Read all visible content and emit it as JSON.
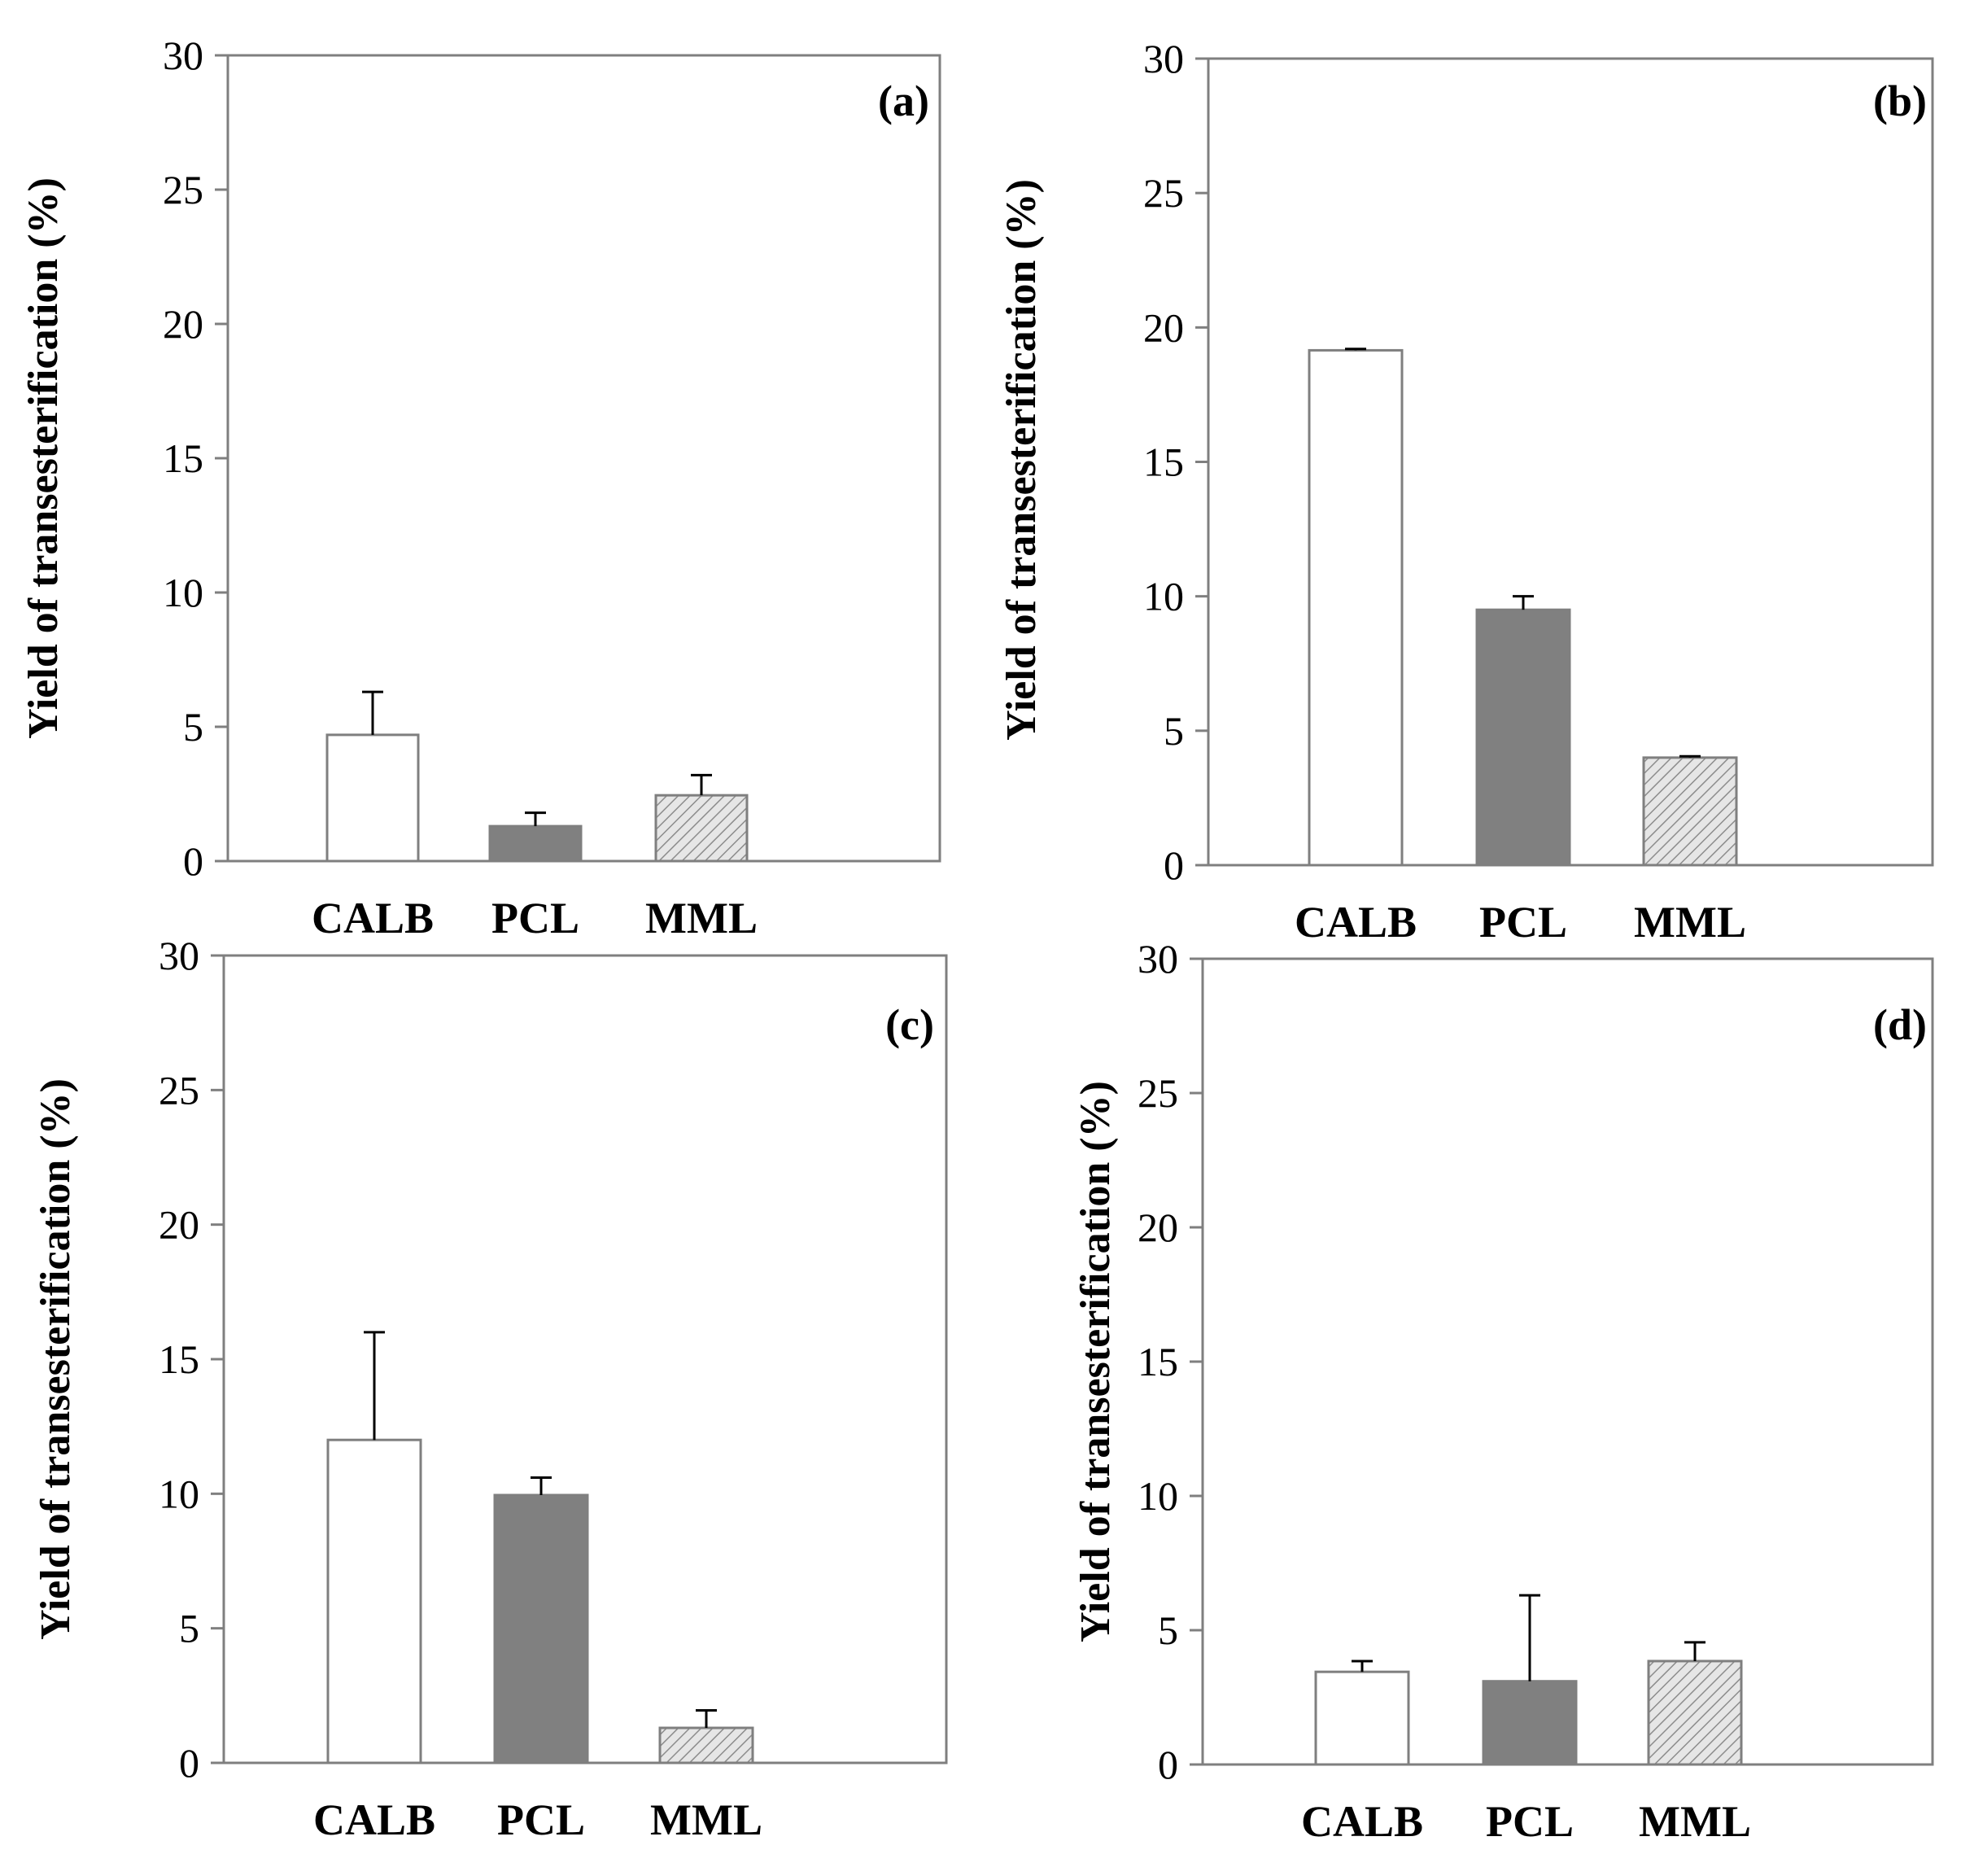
{
  "chart_data": [
    {
      "type": "bar",
      "panel_label": "(a)",
      "categories": [
        "CALB",
        "PCL",
        "MML"
      ],
      "values": [
        4.7,
        1.3,
        2.45
      ],
      "error_plus": [
        1.6,
        0.5,
        0.75
      ],
      "ylabel": "Yield of transesterification (%)",
      "ylim": [
        0,
        30
      ],
      "yticks": [
        "0",
        "5",
        "10",
        "15",
        "20",
        "25",
        "30"
      ],
      "legend": "none",
      "grid": false
    },
    {
      "type": "bar",
      "panel_label": "(b)",
      "categories": [
        "CALB",
        "PCL",
        "MML"
      ],
      "values": [
        19.15,
        9.5,
        4.0
      ],
      "error_plus": [
        0.05,
        0.5,
        0.05
      ],
      "ylabel": "Yield of transesterification  (%)",
      "ylim": [
        0,
        30
      ],
      "yticks": [
        "0",
        "5",
        "10",
        "15",
        "20",
        "25",
        "30"
      ],
      "legend": "none",
      "grid": false
    },
    {
      "type": "bar",
      "panel_label": "(c)",
      "categories": [
        "CALB",
        "PCL",
        "MML"
      ],
      "values": [
        12.0,
        9.95,
        1.3
      ],
      "error_plus": [
        4.0,
        0.65,
        0.65
      ],
      "ylabel": "Yield of transesterification (%)",
      "ylim": [
        0,
        30
      ],
      "yticks": [
        "0",
        "5",
        "10",
        "15",
        "20",
        "25",
        "30"
      ],
      "legend": "none",
      "grid": false
    },
    {
      "type": "bar",
      "panel_label": "(d)",
      "categories": [
        "CALB",
        "PCL",
        "MML"
      ],
      "values": [
        3.45,
        3.1,
        3.85
      ],
      "error_plus": [
        0.4,
        3.2,
        0.7
      ],
      "ylabel": "Yield of transesterification (%)",
      "ylim": [
        0,
        30
      ],
      "yticks": [
        "0",
        "5",
        "10",
        "15",
        "20",
        "25",
        "30"
      ],
      "legend": "none",
      "grid": false
    }
  ],
  "colors": {
    "calb_fill": "#ffffff",
    "pcl_fill": "#808080",
    "mml_fill": "#e6e6e6",
    "mml_hatch": "#8c8c8c",
    "bar_stroke": "#7f7f7f",
    "axis": "#7f7f7f",
    "error_bar": "#000000"
  }
}
